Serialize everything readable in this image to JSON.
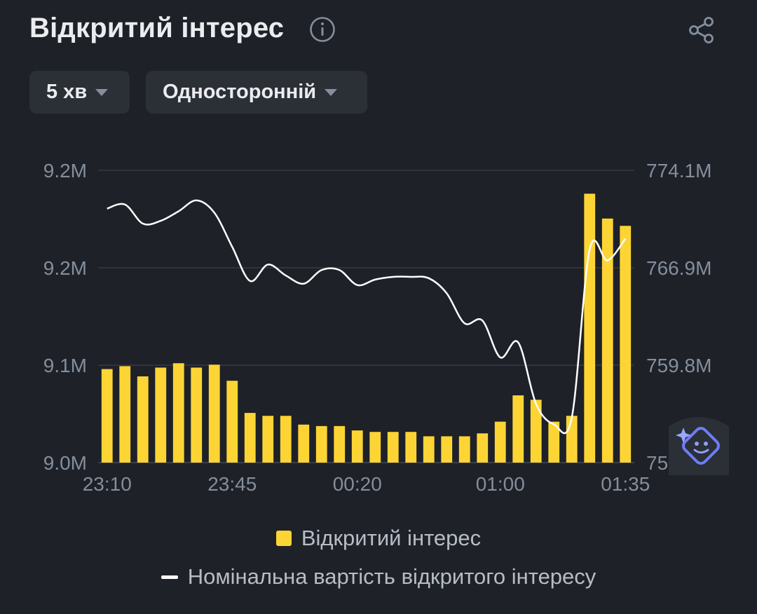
{
  "header": {
    "title": "Відкритий інтерес",
    "info_icon": "info-circle-icon",
    "share_icon": "share-icon"
  },
  "filters": {
    "interval": "5 хв",
    "mode": "Односторонній"
  },
  "colors": {
    "background": "#1e2128",
    "bar": "#fcd535",
    "line": "#ffffff",
    "grid": "#2f343c",
    "tick": "#848e9c"
  },
  "chart_data": {
    "type": "bar",
    "x_ticks": [
      "23:10",
      "23:45",
      "00:20",
      "01:00",
      "01:35"
    ],
    "y_left_ticks": [
      "9.2M",
      "9.2M",
      "9.1M",
      "9.0M"
    ],
    "y_right_ticks": [
      "774.1M",
      "766.9M",
      "759.8M",
      "75"
    ],
    "ylim_left": [
      9.0,
      9.2
    ],
    "ylim_right": [
      752.7,
      774.1
    ],
    "grid": true,
    "legend_position": "bottom",
    "series": [
      {
        "name": "Відкритий інтерес",
        "type": "bar",
        "axis": "left",
        "values": [
          9.064,
          9.066,
          9.059,
          9.065,
          9.068,
          9.065,
          9.067,
          9.056,
          9.034,
          9.032,
          9.032,
          9.026,
          9.025,
          9.025,
          9.022,
          9.021,
          9.021,
          9.021,
          9.018,
          9.018,
          9.018,
          9.02,
          9.028,
          9.046,
          9.043,
          9.028,
          9.032,
          9.184,
          9.167,
          9.162
        ]
      },
      {
        "name": "Номінальна вартість відкритого інтересу",
        "type": "line",
        "axis": "right",
        "values": [
          771.3,
          771.6,
          770.2,
          770.4,
          771.1,
          771.9,
          771.0,
          768.5,
          766.0,
          767.2,
          766.4,
          765.8,
          766.8,
          766.8,
          765.7,
          766.1,
          766.3,
          766.3,
          766.2,
          765.1,
          762.9,
          763.1,
          760.4,
          761.5,
          757.0,
          755.5,
          756.0,
          768.3,
          767.5,
          769.1
        ]
      }
    ]
  },
  "legend": {
    "bar_label": "Відкритий інтерес",
    "line_label": "Номінальна вартість відкритого інтересу"
  },
  "assistant": {
    "icon": "ai-assistant-icon"
  }
}
